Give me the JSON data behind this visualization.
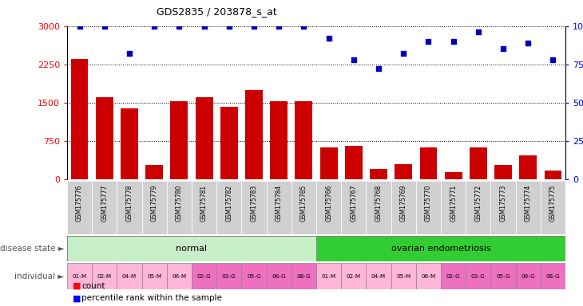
{
  "title": "GDS2835 / 203878_s_at",
  "samples": [
    "GSM175776",
    "GSM175777",
    "GSM175778",
    "GSM175779",
    "GSM175780",
    "GSM175781",
    "GSM175782",
    "GSM175783",
    "GSM175784",
    "GSM175785",
    "GSM175766",
    "GSM175767",
    "GSM175768",
    "GSM175769",
    "GSM175770",
    "GSM175771",
    "GSM175772",
    "GSM175773",
    "GSM175774",
    "GSM175775"
  ],
  "counts": [
    2350,
    1600,
    1390,
    280,
    1530,
    1600,
    1420,
    1750,
    1520,
    1520,
    620,
    650,
    200,
    290,
    620,
    130,
    620,
    280,
    470,
    170
  ],
  "percentiles": [
    100,
    100,
    82,
    100,
    100,
    100,
    100,
    100,
    100,
    100,
    92,
    78,
    72,
    82,
    90,
    90,
    96,
    85,
    89,
    78
  ],
  "individuals": [
    "01-M",
    "02-M",
    "04-M",
    "05-M",
    "06-M",
    "02-G",
    "03-G",
    "05-G",
    "06-G",
    "08-G",
    "01-M",
    "02-M",
    "04-M",
    "05-M",
    "06-M",
    "02-G",
    "03-G",
    "05-G",
    "06-G",
    "08-G"
  ],
  "bar_color": "#CC0000",
  "dot_color": "#0000BB",
  "ylim_left": [
    0,
    3000
  ],
  "ylim_right": [
    0,
    100
  ],
  "yticks_left": [
    0,
    750,
    1500,
    2250,
    3000
  ],
  "yticks_right": [
    0,
    25,
    50,
    75,
    100
  ],
  "normal_light": "#C8F0C8",
  "normal_dark": "#32CD32",
  "indiv_light": "#FFB6D9",
  "indiv_dark": "#EE70C0",
  "sample_bg": "#D0D0D0"
}
